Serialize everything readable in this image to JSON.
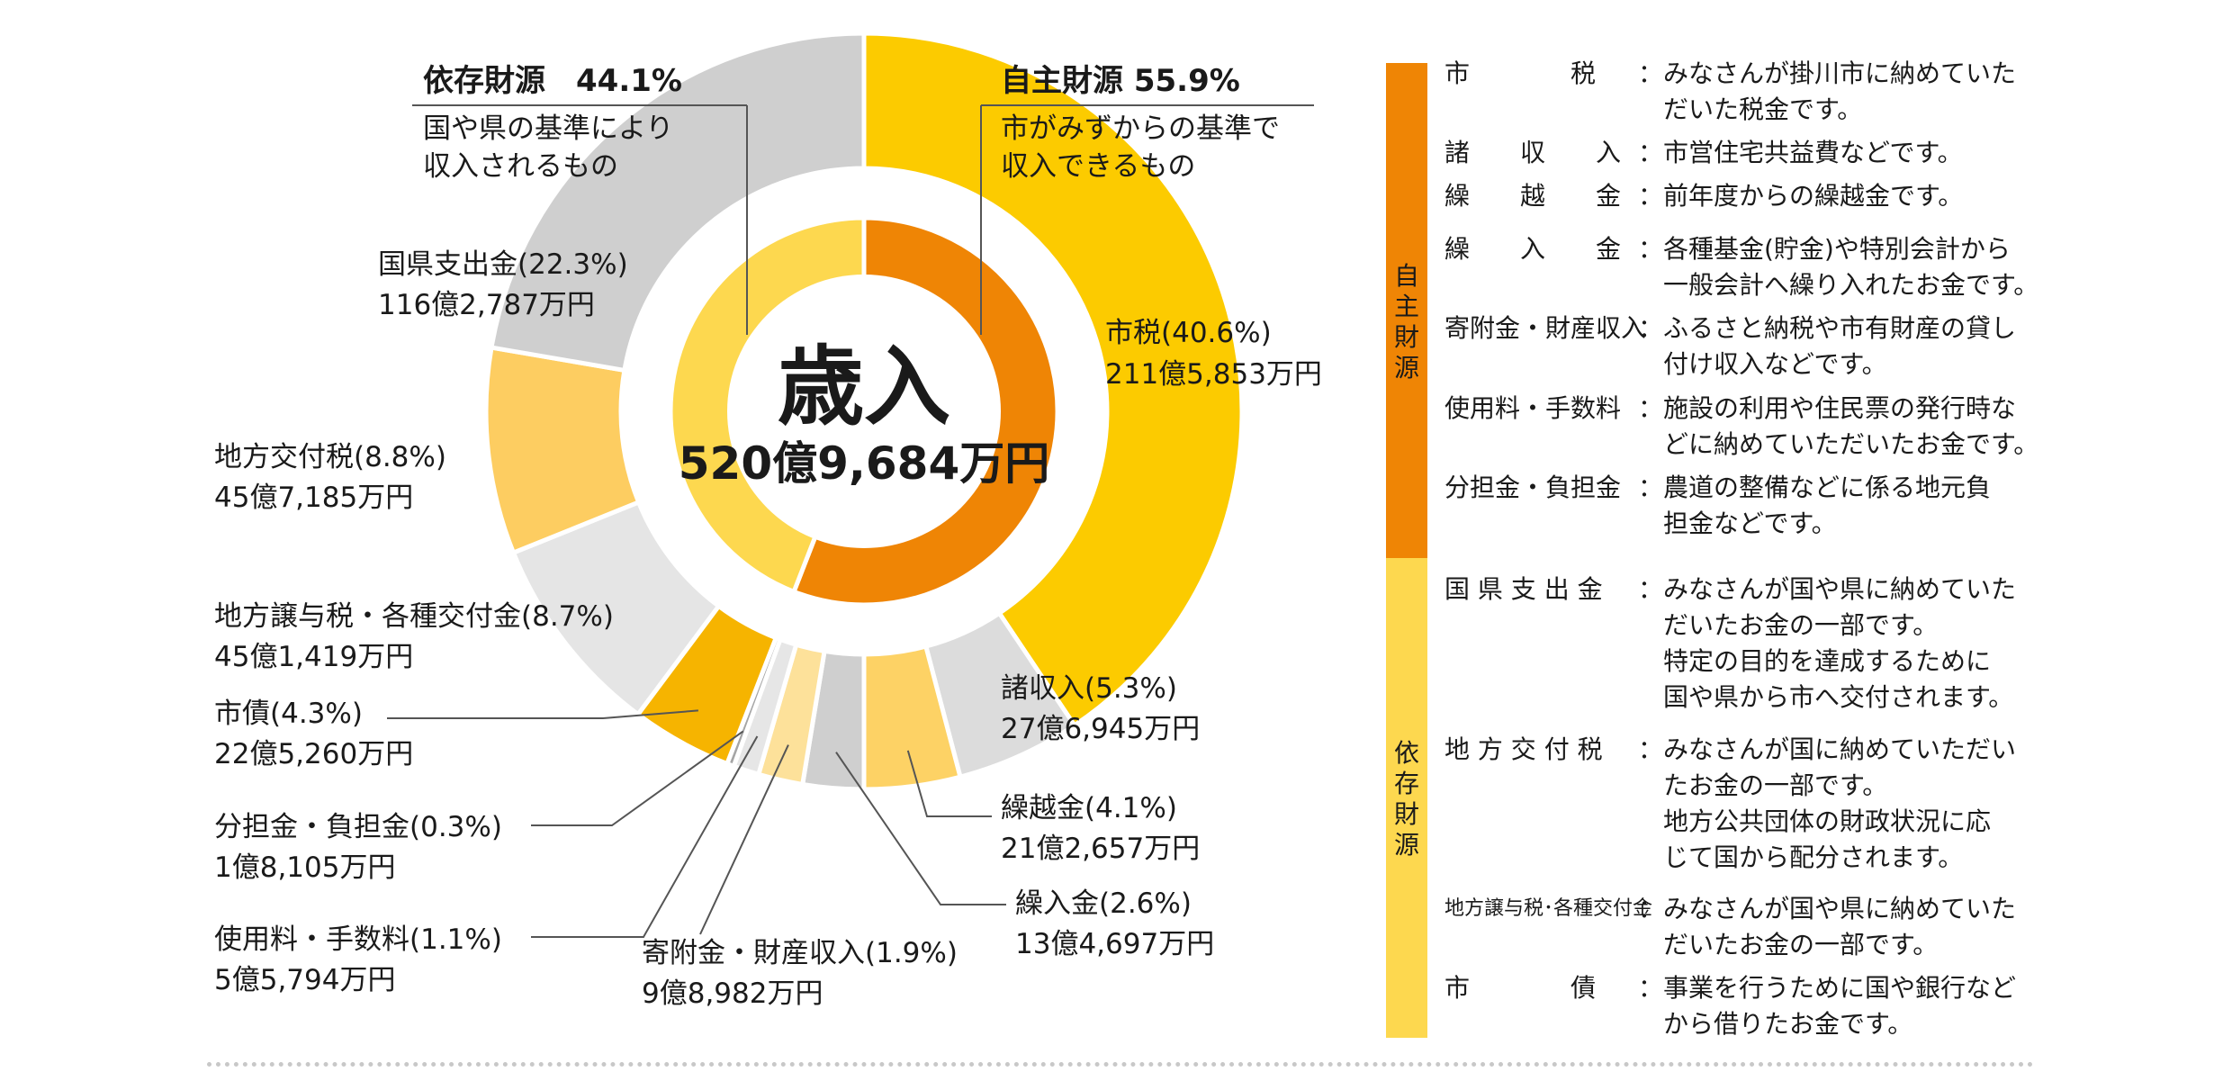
{
  "chart_data": {
    "type": "pie",
    "title": "歳入",
    "total": "520億9,684万円",
    "inner": [
      {
        "name": "依存財源",
        "percent": 44.1,
        "color": "#fdd84f"
      },
      {
        "name": "自主財源",
        "percent": 55.9,
        "color": "#ef8505"
      }
    ],
    "outer": [
      {
        "name": "市税",
        "percent": 40.6,
        "amount": "211億5,853万円",
        "label": "市税(40.6%)",
        "color": "#fccb00"
      },
      {
        "name": "諸収入",
        "percent": 5.3,
        "amount": "27億6,945万円",
        "label": "諸収入(5.3%)",
        "color": "#dcdcdc"
      },
      {
        "name": "繰越金",
        "percent": 4.1,
        "amount": "21億2,657万円",
        "label": "繰越金(4.1%)",
        "color": "#fdd265"
      },
      {
        "name": "繰入金",
        "percent": 2.6,
        "amount": "13億4,697万円",
        "label": "繰入金(2.6%)",
        "color": "#cfcfcf"
      },
      {
        "name": "寄附金・財産収入",
        "percent": 1.9,
        "amount": "9億8,982万円",
        "label": "寄附金・財産収入(1.9%)",
        "color": "#fde19a"
      },
      {
        "name": "使用料・手数料",
        "percent": 1.1,
        "amount": "5億5,794万円",
        "label": "使用料・手数料(1.1%)",
        "color": "#e6e6e6"
      },
      {
        "name": "分担金・負担金",
        "percent": 0.3,
        "amount": "1億8,105万円",
        "label": "分担金・負担金(0.3%)",
        "color": "#a5a5a5"
      },
      {
        "name": "市債",
        "percent": 4.3,
        "amount": "22億5,260万円",
        "label": "市債(4.3%)",
        "color": "#f6b400"
      },
      {
        "name": "地方譲与税・各種交付金",
        "percent": 8.7,
        "amount": "45億1,419万円",
        "label": "地方譲与税・各種交付金(8.7%)",
        "color": "#e5e5e5"
      },
      {
        "name": "地方交付税",
        "percent": 8.8,
        "amount": "45億7,185万円",
        "label": "地方交付税(8.8%)",
        "color": "#fdcd61"
      },
      {
        "name": "国県支出金",
        "percent": 22.3,
        "amount": "116億2,787万円",
        "label": "国県支出金(22.3%)",
        "color": "#cfcfcf"
      }
    ]
  },
  "headers": {
    "dependent": {
      "title": "依存財源　44.1%",
      "desc1": "国や県の基準により",
      "desc2": "収入されるもの"
    },
    "own": {
      "title": "自主財源  55.9%",
      "desc1": "市がみずからの基準で",
      "desc2": "収入できるもの"
    }
  },
  "sidebar": {
    "own_label": "自主財源",
    "own_color": "#ef8505",
    "dependent_label": "依存財源",
    "dependent_color": "#fdd84f"
  },
  "glossary": [
    {
      "term": "市　　　　税",
      "lines": [
        "：みなさんが掛川市に納めていた",
        "　だいた税金です。"
      ]
    },
    {
      "term": "諸　　収　　入",
      "lines": [
        "：市営住宅共益費などです。"
      ]
    },
    {
      "term": "繰　　越　　金",
      "lines": [
        "：前年度からの繰越金です。"
      ]
    },
    {
      "term": "繰　　入　　金",
      "lines": [
        "：各種基金(貯金)や特別会計から",
        "　一般会計へ繰り入れたお金です。"
      ]
    },
    {
      "term": "寄附金・財産収入",
      "lines": [
        "：ふるさと納税や市有財産の貸し",
        "　付け収入などです。"
      ]
    },
    {
      "term": "使用料・手数料",
      "lines": [
        "：施設の利用や住民票の発行時な",
        "　どに納めていただいたお金です。"
      ]
    },
    {
      "term": "分担金・負担金",
      "lines": [
        "：農道の整備などに係る地元負",
        "　担金などです。"
      ]
    },
    {
      "term": "国 県 支 出 金",
      "lines": [
        "：みなさんが国や県に納めていた",
        "　だいたお金の一部です。",
        "　特定の目的を達成するために",
        "　国や県から市へ交付されます。"
      ]
    },
    {
      "term": "地 方 交 付 税",
      "lines": [
        "：みなさんが国に納めていただい",
        "　たお金の一部です。",
        "　地方公共団体の財政状況に応",
        "　じて国から配分されます。"
      ]
    },
    {
      "term": "地方譲与税･各種交付金",
      "lines": [
        "：みなさんが国や県に納めていた",
        "　だいたお金の一部です。"
      ]
    },
    {
      "term": "市　　　　債",
      "lines": [
        "：事業を行うために国や銀行など",
        "　から借りたお金です。"
      ]
    }
  ]
}
